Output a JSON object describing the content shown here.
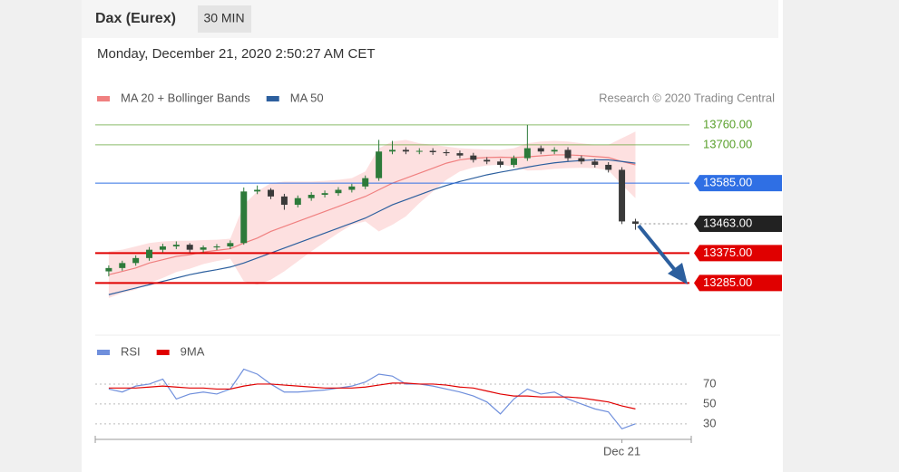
{
  "header": {
    "title": "Dax (Eurex)",
    "interval": "30 MIN"
  },
  "timestamp": "Monday, December 21, 2020 2:50:27 AM CET",
  "chart_data": [
    {
      "type": "candlestick",
      "credit": "Research © 2020 Trading Central",
      "legend": "top-left",
      "up_color": "#2d7a3a",
      "down_color": "#3a3a3a",
      "x": [
        1,
        2,
        3,
        4,
        5,
        6,
        7,
        8,
        9,
        10,
        11,
        12,
        13,
        14,
        15,
        16,
        17,
        18,
        19,
        20,
        21,
        22,
        23,
        24,
        25,
        26,
        27,
        28,
        29,
        30,
        31,
        32,
        33,
        34,
        35,
        36,
        37,
        38,
        39,
        40
      ],
      "open": [
        13320,
        13330,
        13345,
        13360,
        13385,
        13395,
        13400,
        13385,
        13392,
        13395,
        13405,
        13560,
        13565,
        13545,
        13520,
        13540,
        13550,
        13555,
        13565,
        13575,
        13600,
        13680,
        13685,
        13680,
        13682,
        13678,
        13675,
        13668,
        13655,
        13650,
        13640,
        13660,
        13690,
        13680,
        13685,
        13660,
        13650,
        13640,
        13625,
        13470
      ],
      "high": [
        13338,
        13352,
        13368,
        13393,
        13403,
        13410,
        13405,
        13398,
        13402,
        13413,
        13572,
        13578,
        13570,
        13553,
        13548,
        13558,
        13563,
        13573,
        13583,
        13608,
        13715,
        13712,
        13693,
        13690,
        13690,
        13686,
        13683,
        13676,
        13663,
        13658,
        13668,
        13760,
        13698,
        13693,
        13693,
        13668,
        13658,
        13648,
        13633,
        13478
      ],
      "low": [
        13305,
        13322,
        13337,
        13352,
        13377,
        13387,
        13377,
        13377,
        13384,
        13387,
        13400,
        13552,
        13537,
        13505,
        13512,
        13532,
        13542,
        13547,
        13557,
        13567,
        13592,
        13672,
        13672,
        13672,
        13670,
        13667,
        13660,
        13647,
        13642,
        13632,
        13632,
        13652,
        13672,
        13672,
        13652,
        13642,
        13632,
        13617,
        13462,
        13445
      ],
      "close": [
        13330,
        13345,
        13360,
        13385,
        13395,
        13400,
        13385,
        13392,
        13395,
        13405,
        13560,
        13565,
        13545,
        13520,
        13540,
        13550,
        13555,
        13565,
        13575,
        13600,
        13680,
        13685,
        13680,
        13682,
        13678,
        13675,
        13668,
        13655,
        13650,
        13640,
        13660,
        13690,
        13680,
        13685,
        13660,
        13650,
        13640,
        13625,
        13470,
        13463
      ],
      "series": [
        {
          "name": "MA 20 + Bollinger Bands",
          "color": "#f08080",
          "band_color": "#fde0e0",
          "values": [
            13310,
            13320,
            13330,
            13345,
            13355,
            13365,
            13370,
            13378,
            13383,
            13388,
            13405,
            13420,
            13440,
            13455,
            13470,
            13485,
            13500,
            13515,
            13530,
            13545,
            13565,
            13585,
            13600,
            13615,
            13630,
            13645,
            13655,
            13660,
            13662,
            13663,
            13662,
            13664,
            13667,
            13670,
            13670,
            13668,
            13665,
            13662,
            13650,
            13640
          ],
          "upper": [
            13380,
            13385,
            13395,
            13405,
            13410,
            13412,
            13412,
            13414,
            13415,
            13418,
            13520,
            13560,
            13585,
            13590,
            13590,
            13590,
            13592,
            13595,
            13600,
            13620,
            13690,
            13710,
            13715,
            13705,
            13700,
            13695,
            13690,
            13688,
            13686,
            13685,
            13690,
            13705,
            13710,
            13712,
            13710,
            13705,
            13700,
            13700,
            13720,
            13740
          ],
          "lower": [
            13240,
            13255,
            13265,
            13285,
            13300,
            13318,
            13328,
            13342,
            13351,
            13358,
            13290,
            13280,
            13295,
            13320,
            13350,
            13380,
            13408,
            13435,
            13460,
            13470,
            13440,
            13460,
            13485,
            13525,
            13560,
            13595,
            13620,
            13632,
            13638,
            13641,
            13634,
            13623,
            13624,
            13628,
            13630,
            13631,
            13630,
            13624,
            13580,
            13540
          ]
        },
        {
          "name": "MA 50",
          "color": "#2c5f9e",
          "values": [
            13250,
            13260,
            13270,
            13280,
            13290,
            13300,
            13310,
            13318,
            13325,
            13333,
            13345,
            13360,
            13375,
            13390,
            13405,
            13420,
            13435,
            13450,
            13465,
            13480,
            13500,
            13520,
            13535,
            13550,
            13565,
            13578,
            13590,
            13600,
            13610,
            13618,
            13625,
            13633,
            13640,
            13646,
            13650,
            13653,
            13655,
            13655,
            13650,
            13645
          ]
        }
      ],
      "levels": [
        {
          "value": 13760,
          "label": "13760.00",
          "color": "#5aa02c",
          "style": "thin",
          "boxed": false
        },
        {
          "value": 13700,
          "label": "13700.00",
          "color": "#5aa02c",
          "style": "thin",
          "boxed": false
        },
        {
          "value": 13585,
          "label": "13585.00",
          "color": "#2f6fe4",
          "style": "thin",
          "boxed": true
        },
        {
          "value": 13463,
          "label": "13463.00",
          "color": "#222222",
          "style": "dotted",
          "boxed": true
        },
        {
          "value": 13375,
          "label": "13375.00",
          "color": "#e00000",
          "style": "thick",
          "boxed": true
        },
        {
          "value": 13285,
          "label": "13285.00",
          "color": "#e00000",
          "style": "thick",
          "boxed": true
        }
      ],
      "xlim": [
        0,
        44
      ],
      "ylim": [
        13150,
        13795
      ]
    },
    {
      "type": "line",
      "legend": "top-left",
      "x": [
        1,
        2,
        3,
        4,
        5,
        6,
        7,
        8,
        9,
        10,
        11,
        12,
        13,
        14,
        15,
        16,
        17,
        18,
        19,
        20,
        21,
        22,
        23,
        24,
        25,
        26,
        27,
        28,
        29,
        30,
        31,
        32,
        33,
        34,
        35,
        36,
        37,
        38,
        39,
        40
      ],
      "series": [
        {
          "name": "RSI",
          "color": "#6f8fdc",
          "values": [
            65,
            62,
            68,
            70,
            75,
            55,
            60,
            62,
            60,
            65,
            85,
            80,
            70,
            62,
            62,
            63,
            64,
            66,
            68,
            72,
            80,
            78,
            70,
            70,
            68,
            65,
            62,
            58,
            52,
            40,
            55,
            65,
            60,
            62,
            55,
            50,
            45,
            42,
            25,
            30
          ]
        },
        {
          "name": "9MA",
          "color": "#e00000",
          "values": [
            66,
            66,
            66,
            67,
            68,
            67,
            66,
            66,
            65,
            65,
            68,
            70,
            70,
            69,
            68,
            67,
            66,
            66,
            66,
            67,
            69,
            71,
            71,
            70,
            70,
            69,
            67,
            66,
            63,
            60,
            58,
            58,
            57,
            57,
            57,
            56,
            54,
            52,
            48,
            45
          ]
        }
      ],
      "xlim": [
        0,
        44
      ],
      "xticks": [
        {
          "value": 39,
          "label": "Dec 21"
        }
      ],
      "ylim": [
        18,
        90
      ],
      "yticks": [
        30,
        50,
        70
      ],
      "grid": true
    }
  ]
}
